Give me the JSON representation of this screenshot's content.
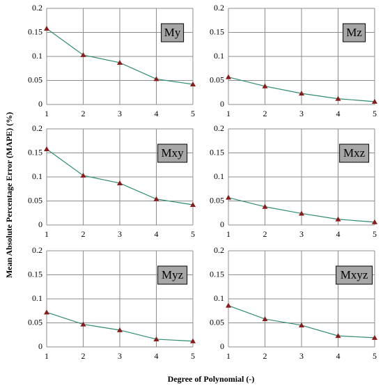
{
  "ylabel": "Mean Absolute Percentage Error (MAPE) (%)",
  "xlabel": "Degree of Polynomial (-)",
  "chart_data": [
    {
      "type": "line",
      "title": "My",
      "x": [
        1,
        2,
        3,
        4,
        5
      ],
      "values": [
        0.158,
        0.103,
        0.087,
        0.053,
        0.042
      ],
      "color": "#2e8b6f",
      "marker_color": "#8b1a1a",
      "xlim": [
        1,
        5
      ],
      "xticks": [
        1,
        2,
        3,
        4,
        5
      ],
      "ylim": [
        0,
        0.2
      ],
      "yticks": [
        0,
        0.05,
        0.1,
        0.15,
        0.2
      ],
      "grid": true
    },
    {
      "type": "line",
      "title": "Mz",
      "x": [
        1,
        2,
        3,
        4,
        5
      ],
      "values": [
        0.057,
        0.038,
        0.023,
        0.012,
        0.006
      ],
      "color": "#2e8b6f",
      "marker_color": "#8b1a1a",
      "xlim": [
        1,
        5
      ],
      "xticks": [
        1,
        2,
        3,
        4,
        5
      ],
      "ylim": [
        0,
        0.2
      ],
      "yticks": [
        0,
        0.05,
        0.1,
        0.15,
        0.2
      ],
      "grid": true
    },
    {
      "type": "line",
      "title": "Mxy",
      "x": [
        1,
        2,
        3,
        4,
        5
      ],
      "values": [
        0.158,
        0.103,
        0.087,
        0.054,
        0.042
      ],
      "color": "#2e8b6f",
      "marker_color": "#8b1a1a",
      "xlim": [
        1,
        5
      ],
      "xticks": [
        1,
        2,
        3,
        4,
        5
      ],
      "ylim": [
        0,
        0.2
      ],
      "yticks": [
        0,
        0.05,
        0.1,
        0.15,
        0.2
      ],
      "grid": true
    },
    {
      "type": "line",
      "title": "Mxz",
      "x": [
        1,
        2,
        3,
        4,
        5
      ],
      "values": [
        0.057,
        0.038,
        0.024,
        0.012,
        0.006
      ],
      "color": "#2e8b6f",
      "marker_color": "#8b1a1a",
      "xlim": [
        1,
        5
      ],
      "xticks": [
        1,
        2,
        3,
        4,
        5
      ],
      "ylim": [
        0,
        0.2
      ],
      "yticks": [
        0,
        0.05,
        0.1,
        0.15,
        0.2
      ],
      "grid": true
    },
    {
      "type": "line",
      "title": "Myz",
      "x": [
        1,
        2,
        3,
        4,
        5
      ],
      "values": [
        0.072,
        0.047,
        0.035,
        0.016,
        0.012
      ],
      "color": "#2e8b6f",
      "marker_color": "#8b1a1a",
      "xlim": [
        1,
        5
      ],
      "xticks": [
        1,
        2,
        3,
        4,
        5
      ],
      "ylim": [
        0,
        0.2
      ],
      "yticks": [
        0,
        0.05,
        0.1,
        0.15,
        0.2
      ],
      "grid": true
    },
    {
      "type": "line",
      "title": "Mxyz",
      "x": [
        1,
        2,
        3,
        4,
        5
      ],
      "values": [
        0.086,
        0.058,
        0.045,
        0.023,
        0.019
      ],
      "color": "#2e8b6f",
      "marker_color": "#8b1a1a",
      "xlim": [
        1,
        5
      ],
      "xticks": [
        1,
        2,
        3,
        4,
        5
      ],
      "ylim": [
        0,
        0.2
      ],
      "yticks": [
        0,
        0.05,
        0.1,
        0.15,
        0.2
      ],
      "grid": true
    }
  ]
}
